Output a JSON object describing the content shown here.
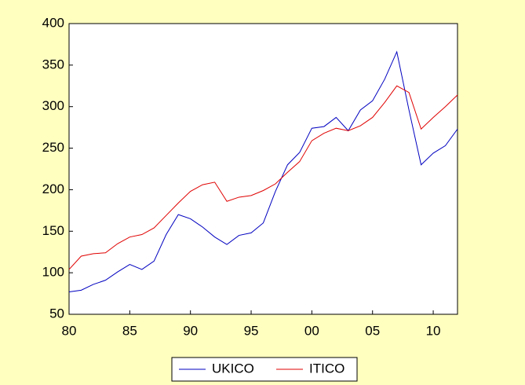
{
  "chart_data": {
    "type": "line",
    "x": [
      1980,
      1981,
      1982,
      1983,
      1984,
      1985,
      1986,
      1987,
      1988,
      1989,
      1990,
      1991,
      1992,
      1993,
      1994,
      1995,
      1996,
      1997,
      1998,
      1999,
      2000,
      2001,
      2002,
      2003,
      2004,
      2005,
      2006,
      2007,
      2008,
      2009,
      2010,
      2011,
      2012
    ],
    "series": [
      {
        "name": "UKICO",
        "color": "#0000c0",
        "values": [
          77,
          79,
          86,
          91,
          101,
          110,
          104,
          114,
          146,
          170,
          165,
          155,
          143,
          134,
          145,
          148,
          160,
          198,
          230,
          245,
          274,
          276,
          287,
          271,
          296,
          307,
          333,
          366,
          296,
          230,
          244,
          253,
          273
        ]
      },
      {
        "name": "ITICO",
        "color": "#e00000",
        "values": [
          104,
          120,
          123,
          124,
          135,
          143,
          146,
          154,
          169,
          184,
          198,
          206,
          209,
          186,
          191,
          193,
          199,
          207,
          221,
          234,
          259,
          268,
          274,
          271,
          277,
          287,
          305,
          325,
          317,
          273,
          287,
          300,
          314
        ]
      }
    ],
    "xlim": [
      1980,
      2012
    ],
    "xticks": [
      {
        "value": 1980,
        "label": "80"
      },
      {
        "value": 1985,
        "label": "85"
      },
      {
        "value": 1990,
        "label": "90"
      },
      {
        "value": 1995,
        "label": "95"
      },
      {
        "value": 2000,
        "label": "00"
      },
      {
        "value": 2005,
        "label": "05"
      },
      {
        "value": 2010,
        "label": "10"
      }
    ],
    "ylim": [
      50,
      400
    ],
    "yticks": [
      50,
      100,
      150,
      200,
      250,
      300,
      350,
      400
    ],
    "legend": "bottom"
  }
}
